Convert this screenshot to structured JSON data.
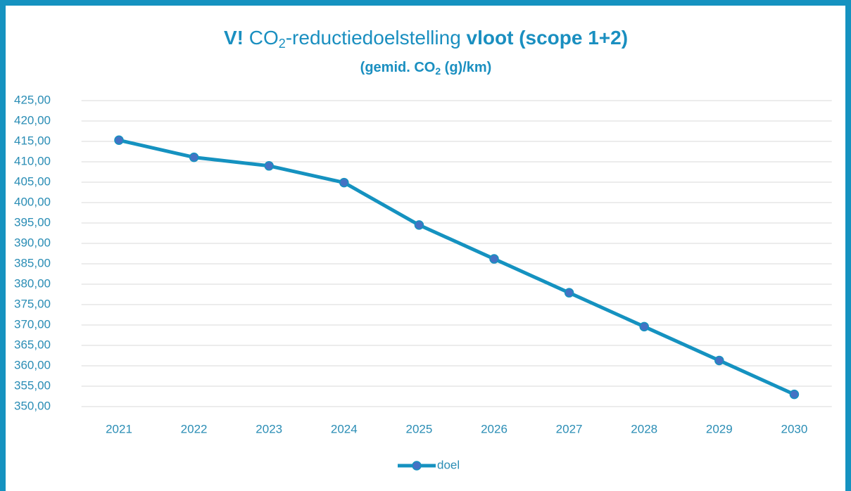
{
  "chart_data": {
    "type": "line",
    "title_parts": [
      "V!",
      " CO",
      "2",
      "-reductiedoelstelling ",
      "vloot (scope 1+2)"
    ],
    "subtitle_parts": [
      "(gemid. CO",
      "2",
      " (g)/km)"
    ],
    "categories": [
      "2021",
      "2022",
      "2023",
      "2024",
      "2025",
      "2026",
      "2027",
      "2028",
      "2029",
      "2030"
    ],
    "series": [
      {
        "name": "doel",
        "color": "#1592c0",
        "marker_color": "#4472c4",
        "values": [
          415.3,
          411.1,
          409.0,
          404.9,
          394.5,
          386.2,
          377.9,
          369.6,
          361.3,
          353.0
        ]
      }
    ],
    "ylim": [
      350,
      425
    ],
    "yticks": [
      {
        "value": 350,
        "label": "350,00"
      },
      {
        "value": 355,
        "label": "355,00"
      },
      {
        "value": 360,
        "label": "360,00"
      },
      {
        "value": 365,
        "label": "365,00"
      },
      {
        "value": 370,
        "label": "370,00"
      },
      {
        "value": 375,
        "label": "375,00"
      },
      {
        "value": 380,
        "label": "380,00"
      },
      {
        "value": 385,
        "label": "385,00"
      },
      {
        "value": 390,
        "label": "390,00"
      },
      {
        "value": 395,
        "label": "395,00"
      },
      {
        "value": 400,
        "label": "400,00"
      },
      {
        "value": 405,
        "label": "405,00"
      },
      {
        "value": 410,
        "label": "410,00"
      },
      {
        "value": 415,
        "label": "415,00"
      },
      {
        "value": 420,
        "label": "420,00"
      },
      {
        "value": 425,
        "label": "425,00"
      }
    ],
    "grid": true,
    "legend": "bottom"
  }
}
